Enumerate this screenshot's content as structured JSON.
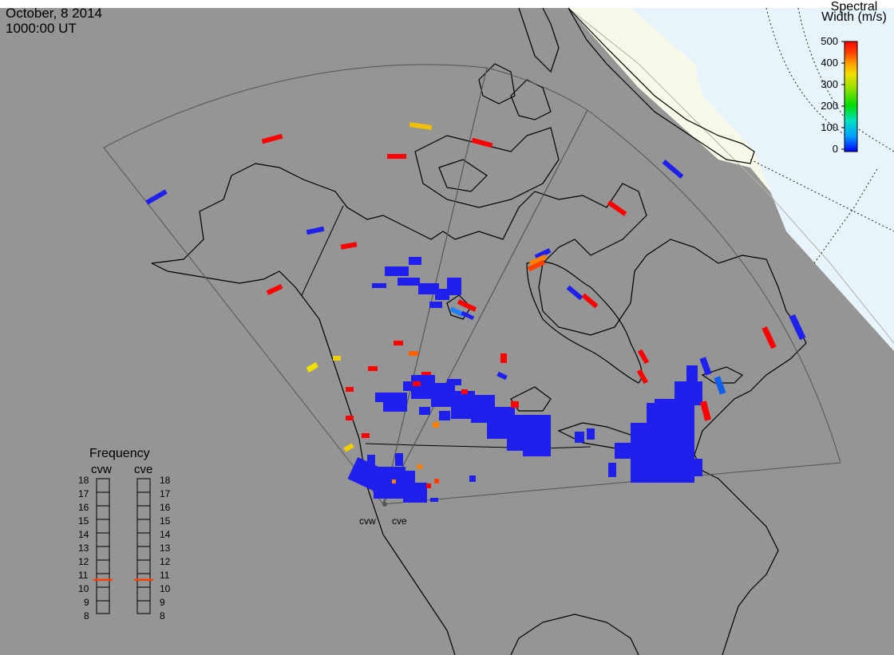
{
  "date_label": "October, 8 2014",
  "time_label": "1000:00 UT",
  "colorbar": {
    "title_line1": "Spectral",
    "title_line2": "Width (m/s)",
    "ticks": [
      "500",
      "400",
      "300",
      "200",
      "100",
      "0"
    ],
    "range": [
      0,
      500
    ],
    "colors": [
      "#0000ff",
      "#00a0ff",
      "#00e0c0",
      "#00dd00",
      "#90e000",
      "#f0e000",
      "#ffa000",
      "#ff4000",
      "#ff0000"
    ]
  },
  "frequency_panel": {
    "title": "Frequency",
    "radars": [
      "cvw",
      "cve"
    ],
    "ticks": [
      "18",
      "17",
      "16",
      "15",
      "14",
      "13",
      "12",
      "11",
      "10",
      "9",
      "8"
    ],
    "range_mhz": [
      8,
      18
    ],
    "current_mhz": {
      "cvw": 10.5,
      "cve": 10.5
    },
    "marker_color": "#ff4000"
  },
  "radar_labels": [
    "cvw",
    "cve"
  ],
  "colors": {
    "background": "#959595",
    "daylight": "#f8f8e8",
    "polar_region": "#e8f4fc",
    "coast": "#000000",
    "fov": "#555555"
  }
}
